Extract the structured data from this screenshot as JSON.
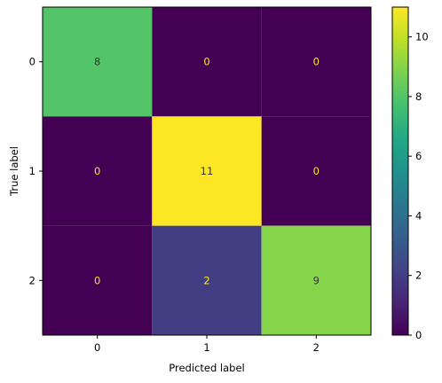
{
  "chart_data": {
    "type": "heatmap",
    "title": "",
    "xlabel": "Predicted label",
    "ylabel": "True label",
    "x_categories": [
      "0",
      "1",
      "2"
    ],
    "y_categories": [
      "0",
      "1",
      "2"
    ],
    "matrix": [
      [
        8,
        0,
        0
      ],
      [
        0,
        11,
        0
      ],
      [
        0,
        2,
        9
      ]
    ],
    "colormap": "viridis",
    "vmin": 0,
    "vmax": 11,
    "colorbar_ticks": [
      "0",
      "2",
      "4",
      "6",
      "8",
      "10"
    ],
    "colors": {
      "low_text": "#fde725",
      "high_text": "#333333"
    }
  }
}
